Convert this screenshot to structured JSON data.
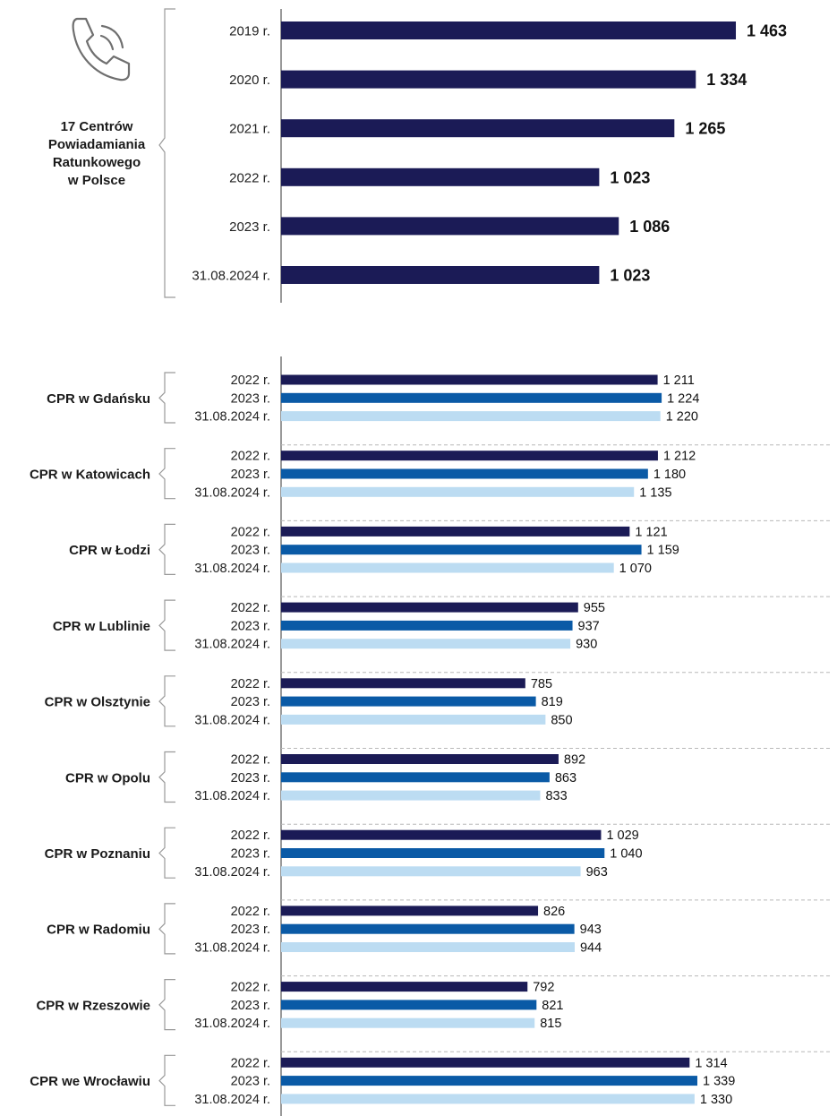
{
  "chart_data": [
    {
      "type": "bar",
      "orientation": "horizontal",
      "group_label": [
        "17 Centrów",
        "Powiadamiania",
        "Ratunkowego",
        "w Polsce"
      ],
      "categories": [
        "2019 r.",
        "2020 r.",
        "2021 r.",
        "2022 r.",
        "2023 r.",
        "31.08.2024 r."
      ],
      "values": [
        1463,
        1334,
        1265,
        1023,
        1086,
        1023
      ],
      "value_labels": [
        "1 463",
        "1 334",
        "1 265",
        "1 023",
        "1 086",
        "1 023"
      ],
      "color": "#1b1b56",
      "icon": "phone-icon"
    },
    {
      "type": "bar",
      "orientation": "horizontal",
      "series_labels": [
        "2022 r.",
        "2023 r.",
        "31.08.2024 r."
      ],
      "series_colors": [
        "#1b1b56",
        "#0a5aa6",
        "#bcdcf2"
      ],
      "groups": [
        {
          "name": "CPR w Gdańsku",
          "values": [
            1211,
            1224,
            1220
          ],
          "value_labels": [
            "1 211",
            "1 224",
            "1 220"
          ]
        },
        {
          "name": "CPR w Katowicach",
          "values": [
            1212,
            1180,
            1135
          ],
          "value_labels": [
            "1 212",
            "1 180",
            "1 135"
          ]
        },
        {
          "name": "CPR w Łodzi",
          "values": [
            1121,
            1159,
            1070
          ],
          "value_labels": [
            "1 121",
            "1 159",
            "1 070"
          ]
        },
        {
          "name": "CPR w Lublinie",
          "values": [
            955,
            937,
            930
          ],
          "value_labels": [
            "955",
            "937",
            "930"
          ]
        },
        {
          "name": "CPR w Olsztynie",
          "values": [
            785,
            819,
            850
          ],
          "value_labels": [
            "785",
            "819",
            "850"
          ]
        },
        {
          "name": "CPR w Opolu",
          "values": [
            892,
            863,
            833
          ],
          "value_labels": [
            "892",
            "863",
            "833"
          ]
        },
        {
          "name": "CPR w Poznaniu",
          "values": [
            1029,
            1040,
            963
          ],
          "value_labels": [
            "1 029",
            "1 040",
            "963"
          ]
        },
        {
          "name": "CPR w Radomiu",
          "values": [
            826,
            943,
            944
          ],
          "value_labels": [
            "826",
            "943",
            "944"
          ]
        },
        {
          "name": "CPR w Rzeszowie",
          "values": [
            792,
            821,
            815
          ],
          "value_labels": [
            "792",
            "821",
            "815"
          ]
        },
        {
          "name": "CPR we Wrocławiu",
          "values": [
            1314,
            1339,
            1330
          ],
          "value_labels": [
            "1 314",
            "1 339",
            "1 330"
          ]
        }
      ]
    }
  ]
}
